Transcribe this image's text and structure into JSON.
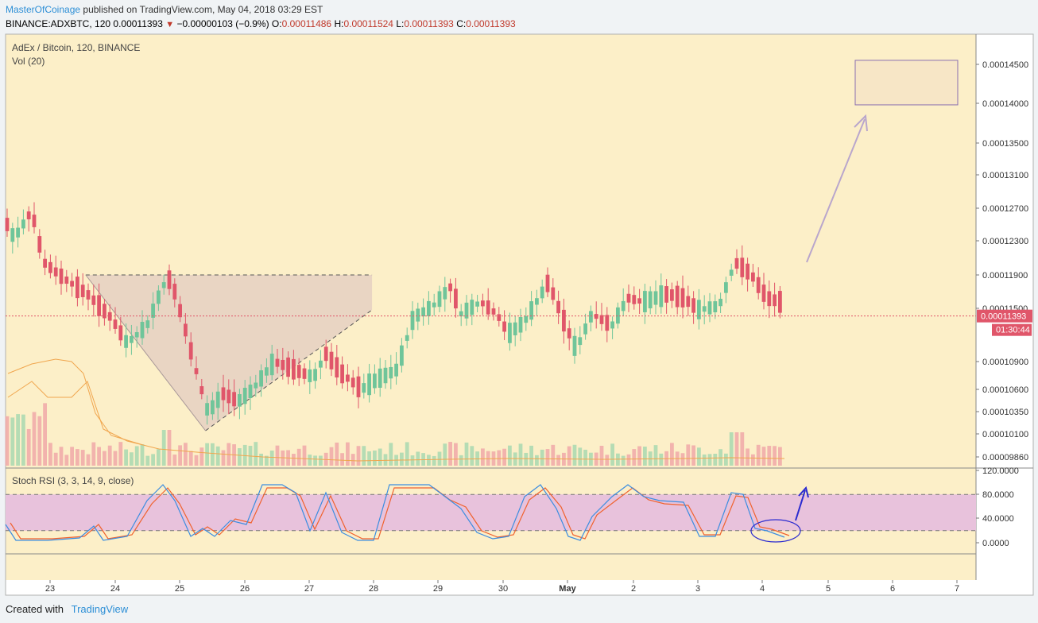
{
  "header": {
    "author": "MasterOfCoinage",
    "published": "published on TradingView.com, May 04, 2018 03:29 EST",
    "symbol": "BINANCE:ADXBTC, 120",
    "last": "0.00011393",
    "change": "−0.00000103 (−0.9%)",
    "o_label": "O:",
    "o": "0.00011486",
    "h_label": "H:",
    "h": "0.00011524",
    "l_label": "L:",
    "l": "0.00011393",
    "c_label": "C:",
    "c": "0.00011393"
  },
  "footer": {
    "created_with": "Created with",
    "brand": "TradingView"
  },
  "chart_data": {
    "type": "candlestick",
    "legend_title": "AdEx / Bitcoin, 120, BINANCE",
    "volume_label": "Vol (20)",
    "oscillator_label": "Stoch RSI (3, 3, 14, 9, close)",
    "price_ticks": [
      "0.00014500",
      "0.00014000",
      "0.00013500",
      "0.00013100",
      "0.00012700",
      "0.00012300",
      "0.00011900",
      "0.00011500",
      "0.00010900",
      "0.00010600",
      "0.00010350",
      "0.00010100",
      "0.00009860"
    ],
    "osc_ticks": [
      "120.0000",
      "80.0000",
      "40.0000",
      "0.0000"
    ],
    "x_ticks": [
      "23",
      "24",
      "25",
      "26",
      "27",
      "28",
      "29",
      "30",
      "May",
      "2",
      "3",
      "4",
      "5",
      "6",
      "7"
    ],
    "last_price_label": "0.00011393",
    "countdown": "01:30:44",
    "resistance": 0.000119,
    "target_zone": [
      0.00014,
      0.0001455
    ],
    "colors": {
      "up": "#6fc59a",
      "down": "#e0566a",
      "background": "#fcefc8",
      "band": "#e8c2dc",
      "k": "#3b8de0",
      "d": "#f0622e"
    }
  }
}
